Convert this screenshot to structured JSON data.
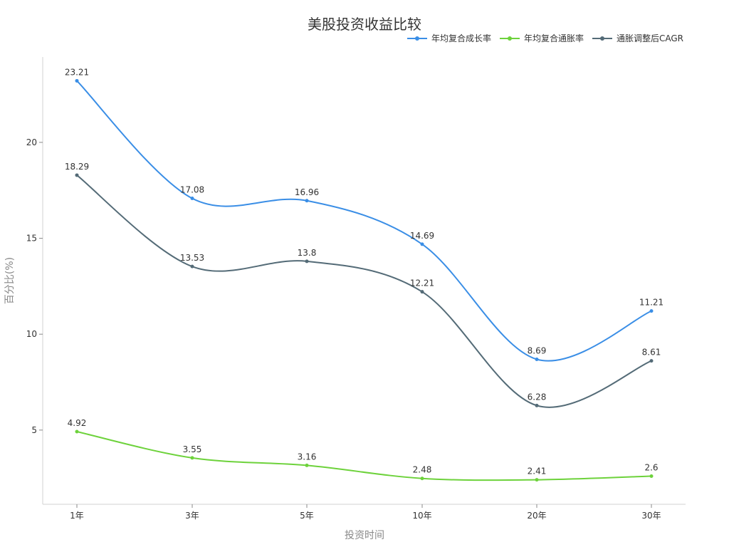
{
  "chart_data": {
    "type": "line",
    "title": "美股投资收益比较",
    "xlabel": "投资时间",
    "ylabel": "百分比(%)",
    "categories": [
      "1年",
      "3年",
      "5年",
      "10年",
      "20年",
      "30年"
    ],
    "yticks": [
      5,
      10,
      15,
      20
    ],
    "ylim": [
      1.2,
      24.6
    ],
    "grid": false,
    "legend_position": "top-right",
    "smooth": true,
    "series": [
      {
        "name": "年均复合成长率",
        "color": "#3A8EE6",
        "values": [
          23.21,
          17.08,
          16.96,
          14.69,
          8.69,
          11.21
        ]
      },
      {
        "name": "年均复合通胀率",
        "color": "#6DD23B",
        "values": [
          4.92,
          3.55,
          3.16,
          2.48,
          2.41,
          2.6
        ]
      },
      {
        "name": "通胀调整后CAGR",
        "color": "#546B77",
        "values": [
          18.29,
          13.53,
          13.8,
          12.21,
          6.28,
          8.61
        ]
      }
    ]
  },
  "header": {
    "title": "美股投资收益比较"
  },
  "legend": {
    "items": [
      {
        "label": "年均复合成长率",
        "color": "#3A8EE6"
      },
      {
        "label": "年均复合通胀率",
        "color": "#6DD23B"
      },
      {
        "label": "通胀调整后CAGR",
        "color": "#546B77"
      }
    ]
  },
  "axes": {
    "x_title": "投资时间",
    "y_title": "百分比(%)",
    "x_ticks": [
      "1年",
      "3年",
      "5年",
      "10年",
      "20年",
      "30年"
    ],
    "y_ticks": [
      "5",
      "10",
      "15",
      "20"
    ]
  }
}
